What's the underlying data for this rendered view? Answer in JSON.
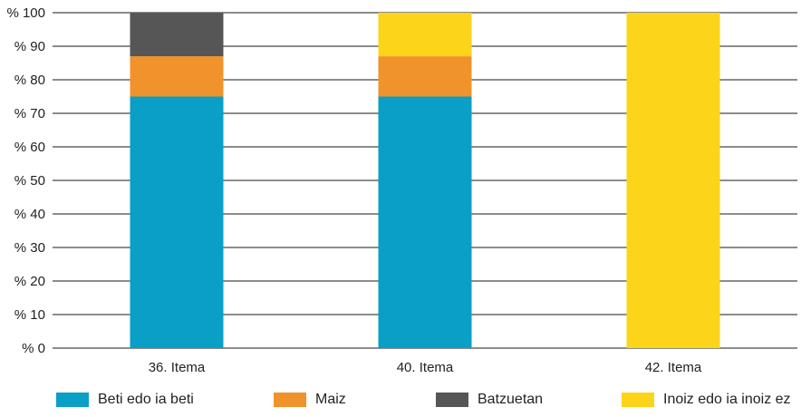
{
  "chart_data": {
    "type": "bar",
    "stacked": true,
    "categories": [
      "36. Itema",
      "40. Itema",
      "42. Itema"
    ],
    "series": [
      {
        "name": "Beti edo ia beti",
        "color": "#0a9fc6",
        "values": [
          75,
          75,
          0
        ]
      },
      {
        "name": "Maiz",
        "color": "#f0932a",
        "values": [
          12,
          12,
          0
        ]
      },
      {
        "name": "Batzuetan",
        "color": "#565656",
        "values": [
          13,
          0,
          0
        ]
      },
      {
        "name": "Inoiz edo ia inoiz ez",
        "color": "#fcd419",
        "values": [
          0,
          13,
          100
        ]
      }
    ],
    "ylim": [
      0,
      100
    ],
    "yticks": [
      0,
      10,
      20,
      30,
      40,
      50,
      60,
      70,
      80,
      90,
      100
    ],
    "ytick_labels": [
      "% 0",
      "% 10",
      "% 20",
      "% 30",
      "% 40",
      "% 50",
      "% 60",
      "% 70",
      "% 80",
      "% 90",
      "% 100"
    ],
    "grid": true,
    "legend_position": "bottom"
  }
}
